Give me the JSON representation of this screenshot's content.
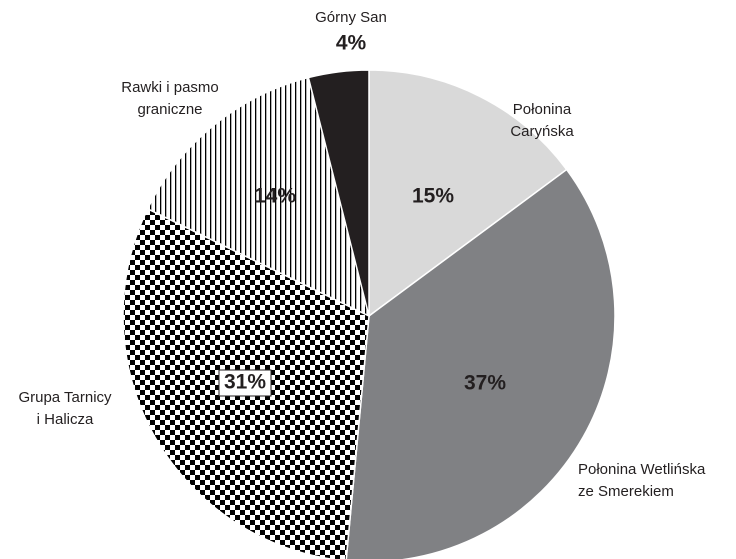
{
  "chart_data": {
    "type": "pie",
    "categories": [
      [
        "Połonina",
        "Caryńska"
      ],
      [
        "Połonina Wetlińska",
        "ze Smerekiem"
      ],
      [
        "Grupa Tarnicy",
        "i Halicza"
      ],
      [
        "Rawki i pasmo",
        "graniczne"
      ],
      [
        "Górny San"
      ]
    ],
    "values": [
      15,
      37,
      31,
      14,
      4
    ],
    "value_labels": [
      "15%",
      "37%",
      "31%",
      "14%",
      "4%"
    ],
    "colors": [
      "#d9d9d9",
      "#808184",
      "#000000",
      "#000000",
      "#231f20"
    ],
    "patterns": [
      "solid",
      "solid",
      "checker",
      "vertical-lines",
      "solid"
    ]
  }
}
